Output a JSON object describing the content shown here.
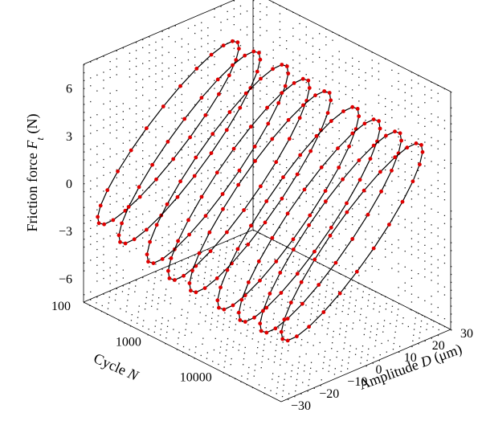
{
  "chart_data": {
    "type": "line",
    "projection": "3d",
    "zlabel": {
      "prefix": "Friction force ",
      "var": "F",
      "sub": "t",
      "suffix": " (N)"
    },
    "xlabel": {
      "prefix": "Cycle ",
      "var": "N"
    },
    "ylabel": {
      "prefix": "Amplitude ",
      "var": "D",
      "suffix": " (μm)"
    },
    "z_ticks": [
      "6",
      "3",
      "0",
      "−3",
      "−6"
    ],
    "z_tick_values": [
      6,
      3,
      0,
      -3,
      -6
    ],
    "cycle_ticks": [
      "100",
      "1000",
      "10000"
    ],
    "cycle_tick_values": [
      100,
      1000,
      10000
    ],
    "amplitude_ticks": [
      "30",
      "20",
      "10",
      "0",
      "−10",
      "−20",
      "−30"
    ],
    "amplitude_tick_values": [
      30,
      20,
      10,
      0,
      -10,
      -20,
      -30
    ],
    "zlim": [
      -7.5,
      7.5
    ],
    "amplitude_range": [
      -30,
      30
    ],
    "cycle_range_log10": [
      2,
      4.8
    ],
    "grid": true,
    "marker_color": "#e00000",
    "line_color": "#000000",
    "series": [
      {
        "cycle": 100,
        "amplitude_max": 25,
        "friction_max": 6.0,
        "friction_min": -4.2
      },
      {
        "cycle": 200,
        "amplitude_max": 25,
        "friction_max": 6.1,
        "friction_min": -4.8
      },
      {
        "cycle": 500,
        "amplitude_max": 25,
        "friction_max": 6.2,
        "friction_min": -5.2
      },
      {
        "cycle": 1000,
        "amplitude_max": 25,
        "friction_max": 6.0,
        "friction_min": -5.6
      },
      {
        "cycle": 2000,
        "amplitude_max": 25,
        "friction_max": 5.9,
        "friction_min": -5.7
      },
      {
        "cycle": 5000,
        "amplitude_max": 25,
        "friction_max": 5.8,
        "friction_min": -5.9
      },
      {
        "cycle": 10000,
        "amplitude_max": 25,
        "friction_max": 5.7,
        "friction_min": -6.0
      },
      {
        "cycle": 20000,
        "amplitude_max": 25,
        "friction_max": 5.6,
        "friction_min": -6.0
      },
      {
        "cycle": 40000,
        "amplitude_max": 25,
        "friction_max": 5.5,
        "friction_min": -5.8
      }
    ]
  }
}
